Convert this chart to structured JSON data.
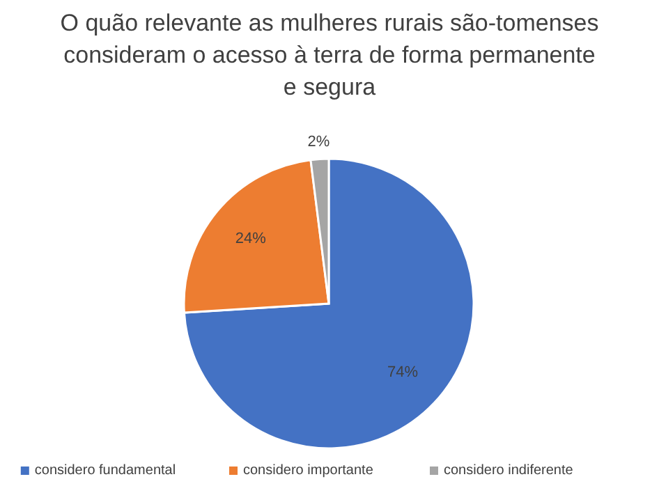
{
  "chart_data": {
    "type": "pie",
    "title": "O quão relevante as mulheres rurais são-tomenses consideram o acesso à terra de forma permanente e segura",
    "categories": [
      "considero fundamental",
      "considero importante",
      "considero indiferente"
    ],
    "values": [
      74,
      24,
      2
    ],
    "colors": [
      "#4472c4",
      "#ed7d31",
      "#a5a5a5"
    ],
    "value_labels": [
      "74%",
      "24%",
      "2%"
    ],
    "legend": "bottom"
  }
}
